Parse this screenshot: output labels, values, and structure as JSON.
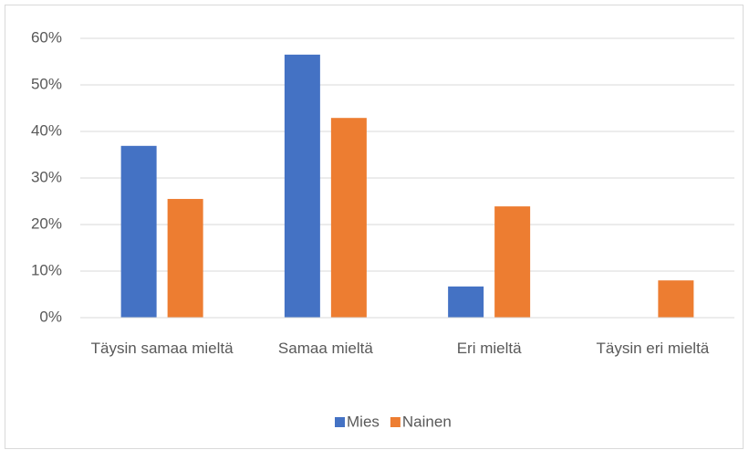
{
  "chart_data": {
    "type": "bar",
    "categories": [
      "Täysin samaa mieltä",
      "Samaa mieltä",
      "Eri mieltä",
      "Täysin eri mieltä"
    ],
    "series": [
      {
        "name": "Mies",
        "color": "#4472c4",
        "values": [
          36.9,
          56.5,
          6.7,
          0
        ]
      },
      {
        "name": "Nainen",
        "color": "#ed7d31",
        "values": [
          25.5,
          42.9,
          23.9,
          8.0
        ]
      }
    ],
    "ylim": [
      0,
      60
    ],
    "yticks": [
      {
        "value": 0,
        "label": "0%"
      },
      {
        "value": 10,
        "label": "10%"
      },
      {
        "value": 20,
        "label": "20%"
      },
      {
        "value": 30,
        "label": "30%"
      },
      {
        "value": 40,
        "label": "40%"
      },
      {
        "value": 50,
        "label": "50%"
      },
      {
        "value": 60,
        "label": "60%"
      }
    ],
    "grid": true,
    "legend": "bottom"
  }
}
